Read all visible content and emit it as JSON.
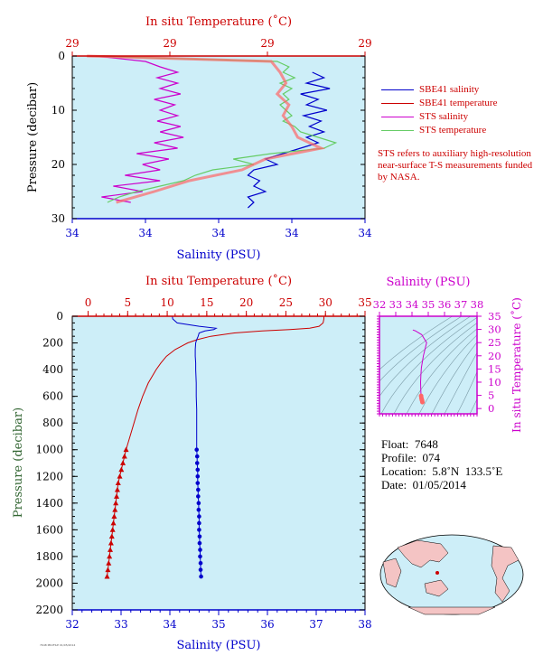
{
  "colors": {
    "background": "#cdeef8",
    "temperature": "#cc0000",
    "salinity": "#0000cc",
    "sts_salinity": "#cc00cc",
    "sts_temperature": "#66cc66",
    "sbe_temperature_fill": "#ff6666",
    "pressure_label": "#336633"
  },
  "top_panel": {
    "title_top": "In situ Temperature (˚C)",
    "top_ticks": [
      "29",
      "29",
      "29",
      "29"
    ],
    "xlabel": "Salinity (PSU)",
    "bottom_ticks": [
      "34",
      "34",
      "34",
      "34",
      "34"
    ],
    "ylabel": "Pressure (decibar)",
    "y_ticks": [
      "0",
      "10",
      "20",
      "30"
    ]
  },
  "legend": {
    "items": [
      {
        "label": "SBE41 salinity",
        "color": "#0000cc"
      },
      {
        "label": "SBE41 temperature",
        "color": "#cc0000"
      },
      {
        "label": "STS salinity",
        "color": "#cc00cc"
      },
      {
        "label": "STS temperature",
        "color": "#66cc66"
      }
    ]
  },
  "note": "STS refers to auxiliary high-resolution near-surface T-S measurements funded by NASA.",
  "main_panel": {
    "title_top": "In situ Temperature (˚C)",
    "top_ticks": [
      "0",
      "5",
      "10",
      "15",
      "20",
      "25",
      "30",
      "35"
    ],
    "xlabel": "Salinity (PSU)",
    "bottom_ticks": [
      "32",
      "33",
      "34",
      "35",
      "36",
      "37",
      "38"
    ],
    "ylabel": "Pressure (decibar)",
    "y_ticks": [
      "0",
      "200",
      "400",
      "600",
      "800",
      "1000",
      "1200",
      "1400",
      "1600",
      "1800",
      "2000",
      "2200"
    ]
  },
  "ts_panel": {
    "title_top": "Salinity (PSU)",
    "top_ticks": [
      "32",
      "33",
      "34",
      "35",
      "36",
      "37",
      "38"
    ],
    "ylabel": "In situ Temperature (˚C)",
    "y_ticks": [
      "0",
      "5",
      "10",
      "15",
      "20",
      "25",
      "30",
      "35"
    ]
  },
  "info": {
    "float": "Float:  7648",
    "profile": "Profile:  074",
    "location": "Location:  5.8˚N  133.5˚E",
    "date": "Date:  01/05/2014"
  },
  "footer_tiny": "7648 PROFILE 01/05/2014",
  "chart_data": [
    {
      "type": "line",
      "name": "main-profile",
      "xlabel": "Salinity (PSU)",
      "x2label": "In situ Temperature (˚C)",
      "ylabel": "Pressure (decibar)",
      "salinity_xlim": [
        32,
        38
      ],
      "temperature_xlim": [
        -2,
        35
      ],
      "ylim": [
        0,
        2200
      ],
      "series": [
        {
          "name": "SBE41 temperature",
          "pressure": [
            0,
            20,
            50,
            75,
            90,
            100,
            110,
            125,
            150,
            175,
            200,
            250,
            300,
            350,
            400,
            500,
            600,
            700,
            800,
            900,
            1000,
            1050,
            1100,
            1150,
            1200,
            1250,
            1300,
            1350,
            1400,
            1450,
            1500,
            1550,
            1600,
            1650,
            1700,
            1750,
            1800,
            1850,
            1900,
            1950
          ],
          "values": [
            29.8,
            29.8,
            29.7,
            29.2,
            28.0,
            25.5,
            22.0,
            18.5,
            15.5,
            13.8,
            12.6,
            11.0,
            9.9,
            9.2,
            8.6,
            7.6,
            6.9,
            6.3,
            5.8,
            5.3,
            4.8,
            4.6,
            4.4,
            4.2,
            4.0,
            3.8,
            3.7,
            3.6,
            3.5,
            3.4,
            3.3,
            3.2,
            3.1,
            3.0,
            2.9,
            2.8,
            2.7,
            2.6,
            2.5,
            2.4
          ]
        },
        {
          "name": "SBE41 salinity",
          "pressure": [
            0,
            20,
            50,
            75,
            90,
            100,
            110,
            125,
            150,
            175,
            200,
            250,
            300,
            350,
            400,
            500,
            600,
            700,
            800,
            900,
            1000,
            1050,
            1100,
            1150,
            1200,
            1250,
            1300,
            1350,
            1400,
            1450,
            1500,
            1550,
            1600,
            1650,
            1700,
            1750,
            1800,
            1850,
            1900,
            1950
          ],
          "values": [
            34.05,
            34.06,
            34.15,
            34.6,
            34.95,
            34.9,
            34.72,
            34.6,
            34.58,
            34.55,
            34.53,
            34.52,
            34.52,
            34.53,
            34.53,
            34.54,
            34.54,
            34.55,
            34.55,
            34.55,
            34.55,
            34.56,
            34.56,
            34.57,
            34.57,
            34.57,
            34.58,
            34.58,
            34.59,
            34.59,
            34.6,
            34.6,
            34.6,
            34.61,
            34.61,
            34.62,
            34.62,
            34.63,
            34.63,
            34.64
          ]
        }
      ]
    },
    {
      "type": "line",
      "name": "ts-diagram",
      "xlabel": "Salinity (PSU)",
      "ylabel": "In situ Temperature (˚C)",
      "xlim": [
        32,
        38
      ],
      "ylim": [
        -2,
        35
      ],
      "series": [
        {
          "name": "T-S",
          "x": [
            34.05,
            34.2,
            34.6,
            34.9,
            34.7,
            34.58,
            34.55,
            34.53,
            34.54,
            34.55,
            34.56,
            34.58,
            34.6,
            34.62,
            34.64
          ],
          "y": [
            29.8,
            29.5,
            28.0,
            25.0,
            20.0,
            15.5,
            13.0,
            10.0,
            7.5,
            5.8,
            4.8,
            4.0,
            3.4,
            3.0,
            2.4
          ]
        }
      ]
    },
    {
      "type": "line",
      "name": "near-surface",
      "xlabel": "Salinity (PSU)",
      "x2label": "In situ Temperature (˚C)",
      "ylabel": "Pressure (decibar)",
      "xlim": [
        0,
        1
      ],
      "ylim": [
        0,
        30
      ],
      "series": [
        {
          "name": "SBE41 salinity",
          "pressure": [
            3,
            4,
            5,
            6,
            7,
            8,
            9,
            10,
            11,
            12,
            13,
            14,
            15,
            16,
            17,
            18,
            19,
            20,
            21,
            22,
            23,
            24,
            25,
            26,
            27,
            28
          ],
          "values": [
            0.82,
            0.86,
            0.8,
            0.88,
            0.78,
            0.84,
            0.8,
            0.87,
            0.79,
            0.85,
            0.81,
            0.86,
            0.8,
            0.84,
            0.78,
            0.72,
            0.66,
            0.7,
            0.62,
            0.6,
            0.64,
            0.62,
            0.66,
            0.6,
            0.62,
            0.6
          ]
        },
        {
          "name": "STS salinity",
          "pressure": [
            0,
            1,
            2,
            3,
            4,
            5,
            6,
            7,
            8,
            9,
            10,
            11,
            12,
            13,
            14,
            15,
            16,
            17,
            18,
            19,
            20,
            21,
            22,
            23,
            24,
            25,
            26,
            27
          ],
          "values": [
            0.08,
            0.25,
            0.3,
            0.36,
            0.29,
            0.36,
            0.3,
            0.37,
            0.28,
            0.35,
            0.3,
            0.36,
            0.29,
            0.37,
            0.3,
            0.38,
            0.28,
            0.36,
            0.22,
            0.33,
            0.24,
            0.3,
            0.18,
            0.3,
            0.14,
            0.24,
            0.1,
            0.2
          ]
        },
        {
          "name": "STS temperature",
          "pressure": [
            0,
            1,
            2,
            3,
            4,
            5,
            6,
            7,
            8,
            9,
            10,
            11,
            12,
            13,
            14,
            15,
            16,
            17,
            18,
            19,
            20,
            21,
            22,
            23,
            24,
            25,
            26,
            27
          ],
          "values": [
            0.05,
            0.7,
            0.74,
            0.72,
            0.76,
            0.71,
            0.75,
            0.72,
            0.74,
            0.71,
            0.73,
            0.75,
            0.72,
            0.76,
            0.78,
            0.84,
            0.9,
            0.86,
            0.68,
            0.55,
            0.62,
            0.48,
            0.42,
            0.38,
            0.3,
            0.22,
            0.16,
            0.12
          ]
        },
        {
          "name": "SBE41 temperature",
          "pressure": [
            0,
            1,
            3,
            5,
            7,
            9,
            11,
            13,
            15,
            17,
            19,
            21,
            23,
            25,
            27
          ],
          "values": [
            0.05,
            0.68,
            0.71,
            0.73,
            0.7,
            0.74,
            0.72,
            0.75,
            0.77,
            0.85,
            0.66,
            0.58,
            0.4,
            0.28,
            0.15
          ]
        }
      ]
    }
  ]
}
